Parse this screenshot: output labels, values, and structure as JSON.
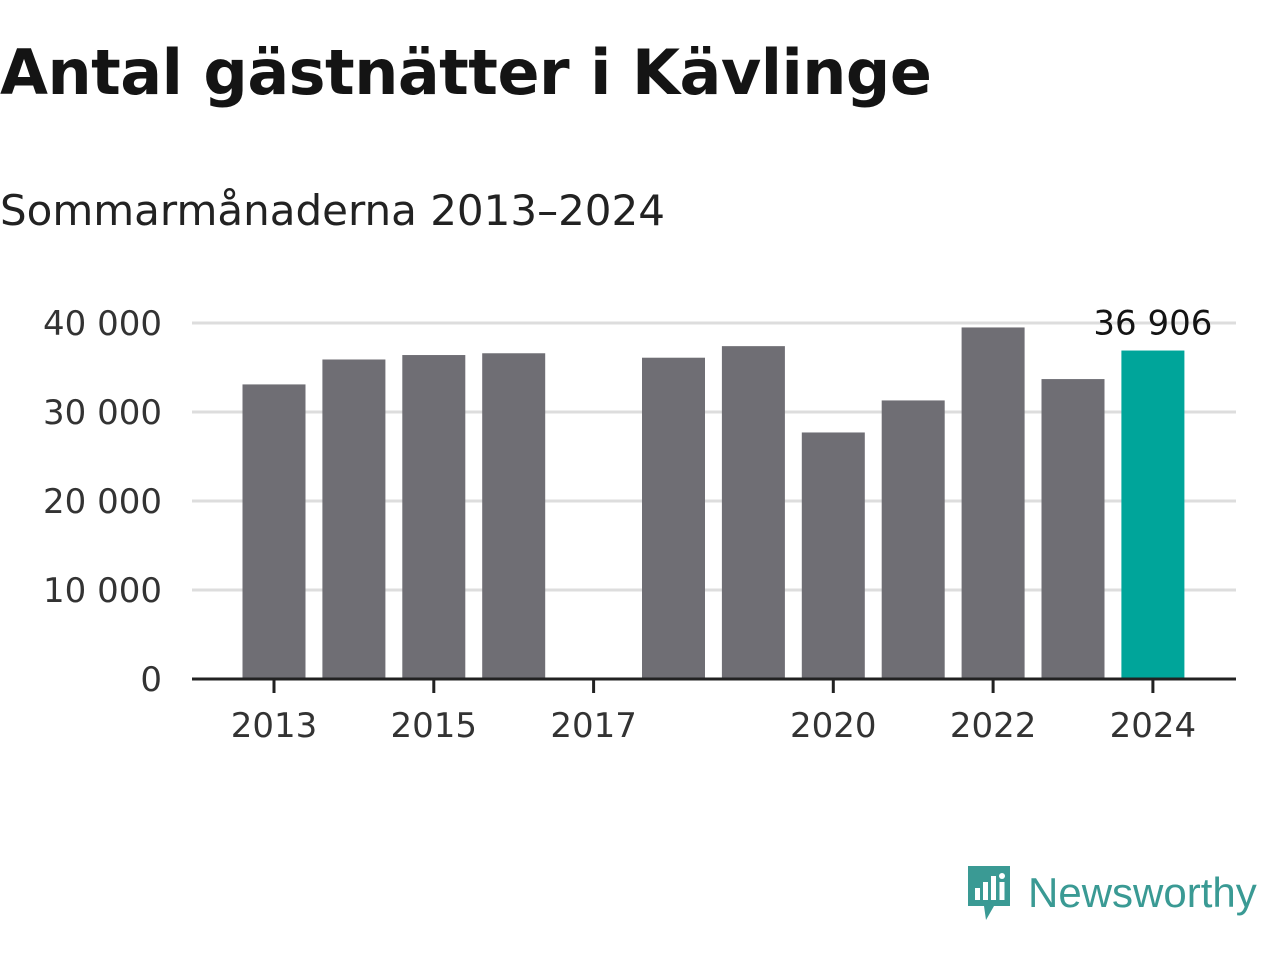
{
  "title": "Antal gästnätter i Kävlinge",
  "subtitle": "Sommarmånaderna 2013–2024",
  "brand": {
    "name": "Newsworthy",
    "color": "#3a9a94"
  },
  "colors": {
    "bar": "#6f6e74",
    "highlight": "#00a59a",
    "grid": "#dddddd",
    "axis": "#222222"
  },
  "chart_data": {
    "type": "bar",
    "title": "Antal gästnätter i Kävlinge",
    "subtitle": "Sommarmånaderna 2013–2024",
    "categories": [
      "2013",
      "2014",
      "2015",
      "2016",
      "2017",
      "2018",
      "2019",
      "2020",
      "2021",
      "2022",
      "2023",
      "2024"
    ],
    "values": [
      33100,
      35900,
      36400,
      36600,
      null,
      36100,
      37400,
      27700,
      31300,
      39500,
      33700,
      36906
    ],
    "highlight_index": 11,
    "ylim": [
      0,
      40000
    ],
    "yticks": [
      0,
      10000,
      20000,
      30000,
      40000
    ],
    "ytick_labels": [
      "0",
      "10 000",
      "20 000",
      "30 000",
      "40 000"
    ],
    "xtick_labels": [
      "2013",
      "2015",
      "2017",
      "2020",
      "2022",
      "2024"
    ],
    "data_labels": [
      {
        "category": "2024",
        "text": "36 906"
      }
    ],
    "xlabel": "",
    "ylabel": "",
    "grid": true
  }
}
